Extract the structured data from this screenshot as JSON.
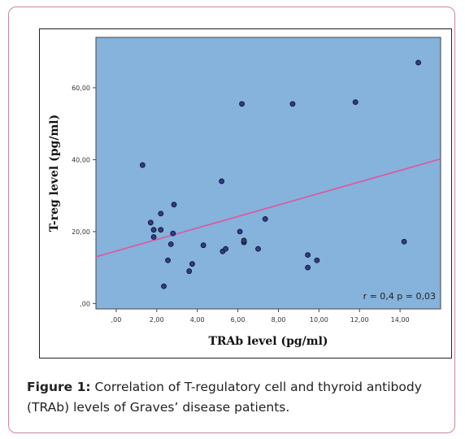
{
  "figure": {
    "label": "Figure 1:",
    "caption": "Correlation of T-regulatory cell and thyroid antibody (TRAb) levels of Graves’ disease patients."
  },
  "chart_data": {
    "type": "scatter",
    "xlabel": "TRAb level (pg/ml)",
    "ylabel": "T-reg level (pg/ml)",
    "xlim": [
      -1,
      16
    ],
    "ylim": [
      -1.5,
      74
    ],
    "x_ticks": [
      0,
      2,
      4,
      6,
      8,
      10,
      12,
      14
    ],
    "x_tick_labels": [
      ",00",
      "2,00",
      "4,00",
      "6,00",
      "8,00",
      "10,00",
      "12,00",
      "14,00"
    ],
    "y_ticks": [
      0,
      20,
      40,
      60
    ],
    "y_tick_labels": [
      ",00",
      "20,00",
      "40,00",
      "60,00"
    ],
    "grid": false,
    "annotation": "r = 0,4 p = 0,03",
    "points": [
      {
        "x": 1.3,
        "y": 38.5
      },
      {
        "x": 1.7,
        "y": 22.5
      },
      {
        "x": 1.85,
        "y": 20.5
      },
      {
        "x": 1.85,
        "y": 18.5
      },
      {
        "x": 2.2,
        "y": 25.0
      },
      {
        "x": 2.2,
        "y": 20.5
      },
      {
        "x": 2.35,
        "y": 4.8
      },
      {
        "x": 2.55,
        "y": 12.0
      },
      {
        "x": 2.7,
        "y": 16.5
      },
      {
        "x": 2.8,
        "y": 19.5
      },
      {
        "x": 2.85,
        "y": 27.5
      },
      {
        "x": 3.6,
        "y": 9.0
      },
      {
        "x": 3.75,
        "y": 11.0
      },
      {
        "x": 4.3,
        "y": 16.2
      },
      {
        "x": 5.2,
        "y": 34.0
      },
      {
        "x": 5.25,
        "y": 14.5
      },
      {
        "x": 5.4,
        "y": 15.2
      },
      {
        "x": 6.1,
        "y": 20.0
      },
      {
        "x": 6.2,
        "y": 55.5
      },
      {
        "x": 6.3,
        "y": 17.0
      },
      {
        "x": 6.3,
        "y": 17.5
      },
      {
        "x": 7.0,
        "y": 15.2
      },
      {
        "x": 7.35,
        "y": 23.5
      },
      {
        "x": 8.7,
        "y": 55.5
      },
      {
        "x": 9.45,
        "y": 13.5
      },
      {
        "x": 9.45,
        "y": 10.0
      },
      {
        "x": 9.9,
        "y": 12.0
      },
      {
        "x": 11.8,
        "y": 56.0
      },
      {
        "x": 14.2,
        "y": 17.2
      },
      {
        "x": 14.9,
        "y": 67.0
      }
    ],
    "fit_line": {
      "x": [
        -1,
        16
      ],
      "y": [
        13.0,
        40.2
      ]
    },
    "colors": {
      "plot_bg": "#85b3dc",
      "point_fill": "#2f3a8f",
      "fit_line": "#e0549e"
    }
  }
}
